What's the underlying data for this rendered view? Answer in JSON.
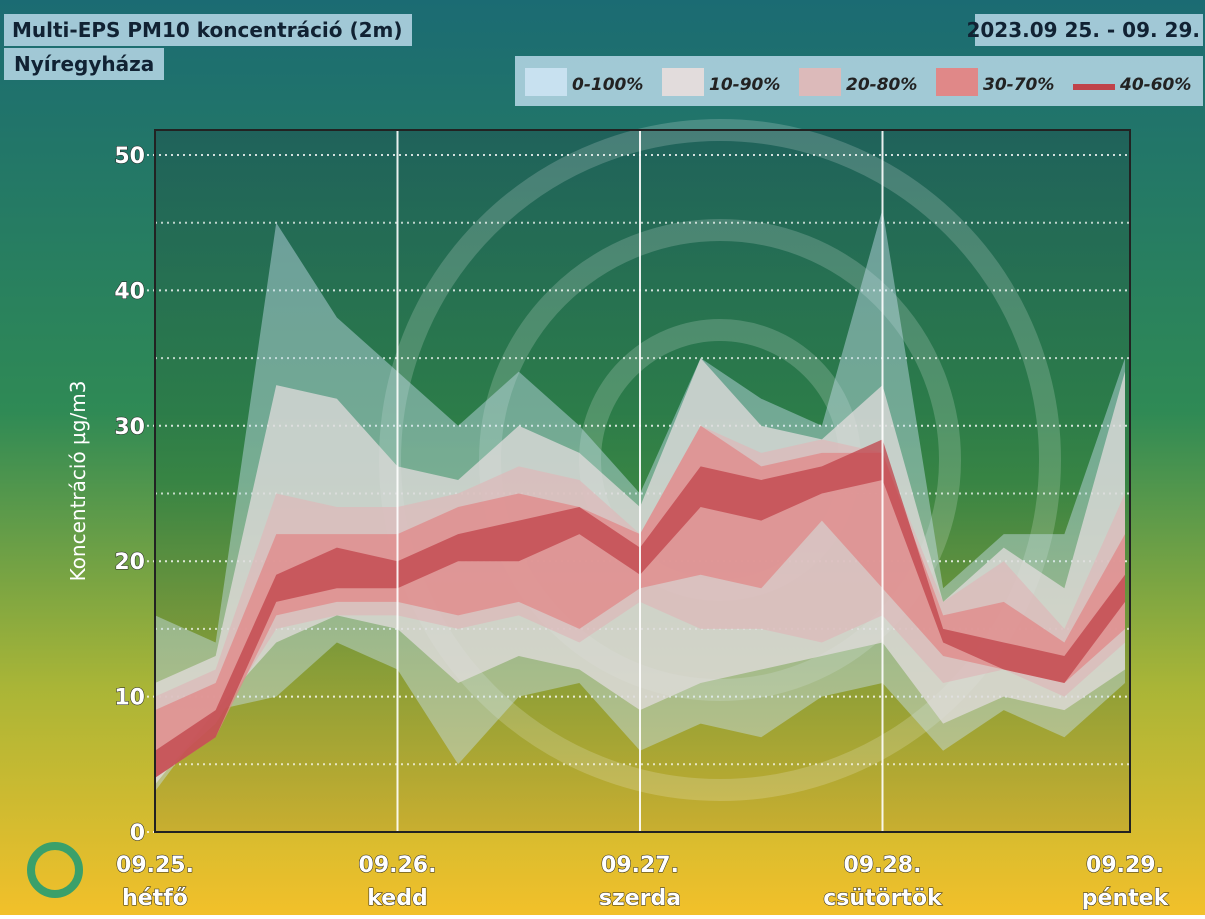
{
  "chart_data": {
    "type": "band",
    "title": "Multi-EPS PM10 koncentráció (2m)",
    "subtitle": "Nyíregyháza",
    "date_range": "2023.09 25. - 09. 29.",
    "y_label": "Koncentráció µg/m3",
    "x": [
      0,
      0.25,
      0.5,
      0.75,
      1,
      1.25,
      1.5,
      1.75,
      2,
      2.25,
      2.5,
      2.75,
      3,
      3.25,
      3.5,
      3.75,
      4
    ],
    "xlim": [
      0,
      4
    ],
    "xticks": [
      {
        "value": 0,
        "label": "09.25."
      },
      {
        "value": 1,
        "label": "09.26."
      },
      {
        "value": 2,
        "label": "09.27."
      },
      {
        "value": 3,
        "label": "09.28."
      },
      {
        "value": 4,
        "label": "09.29."
      }
    ],
    "xtick_days": [
      "hétfő",
      "kedd",
      "szerda",
      "csütörtök",
      "péntek"
    ],
    "ylim": [
      0,
      50
    ],
    "yticks": [
      0,
      10,
      20,
      30,
      40,
      50
    ],
    "grid_minor": [
      5,
      15,
      25,
      35,
      45
    ],
    "series": [
      {
        "name": "0-100%",
        "color": "#c8e1f0",
        "lower": [
          3,
          9,
          10,
          14,
          12,
          5,
          10,
          11,
          6,
          8,
          7,
          10,
          11,
          6,
          9,
          7,
          11
        ],
        "upper": [
          16,
          14,
          45,
          38,
          34,
          30,
          34,
          30,
          25,
          35,
          32,
          30,
          46,
          18,
          22,
          22,
          35
        ]
      },
      {
        "name": "10-90%",
        "color": "#e2dcdc",
        "lower": [
          3.5,
          9,
          14,
          16,
          15,
          11,
          13,
          12,
          9,
          11,
          12,
          13,
          14,
          8,
          10,
          9,
          12
        ],
        "upper": [
          11,
          13,
          33,
          32,
          27,
          26,
          30,
          28,
          24,
          35,
          30,
          29,
          33,
          17,
          21,
          18,
          34
        ]
      },
      {
        "name": "20-80%",
        "color": "#dcbaba",
        "lower": [
          4,
          8,
          15,
          16,
          16,
          15,
          16,
          14,
          17,
          15,
          15,
          14,
          16,
          11,
          12,
          10,
          14
        ],
        "upper": [
          10,
          12,
          25,
          24,
          24,
          25,
          27,
          26,
          22,
          30,
          28,
          29,
          28,
          17,
          20,
          15,
          25
        ]
      },
      {
        "name": "30-70%",
        "color": "#e08888",
        "lower": [
          4,
          7,
          16,
          17,
          17,
          16,
          17,
          15,
          18,
          19,
          18,
          23,
          18,
          13,
          12,
          11,
          15
        ],
        "upper": [
          9,
          11,
          22,
          22,
          22,
          24,
          25,
          24,
          22,
          30,
          27,
          28,
          28,
          16,
          17,
          14,
          22
        ]
      },
      {
        "name": "40-60%",
        "color": "#c0434a",
        "lower": [
          4,
          7,
          17,
          18,
          18,
          20,
          20,
          22,
          19,
          24,
          23,
          25,
          26,
          14,
          12,
          11,
          17
        ],
        "upper": [
          6,
          9,
          19,
          21,
          20,
          22,
          23,
          24,
          21,
          27,
          26,
          27,
          29,
          15,
          14,
          13,
          19
        ]
      }
    ]
  }
}
